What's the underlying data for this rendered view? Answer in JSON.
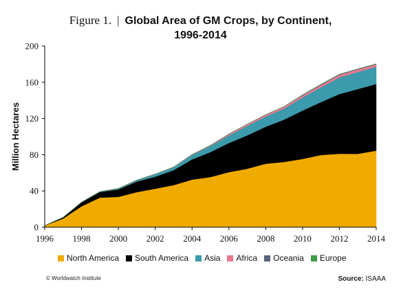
{
  "title_prefix": "Figure 1.",
  "title_sep": "|",
  "title_line1": "Global Area of GM Crops, by Continent,",
  "title_line2": "1996-2014",
  "credit": "© Worldwatch Institute",
  "source_label": "Source:",
  "source_value": "ISAAA",
  "chart_data": {
    "type": "area",
    "stacked": true,
    "title": "Global Area of GM Crops, by Continent, 1996-2014",
    "xlabel": "",
    "ylabel": "Million Hectares",
    "ylim": [
      0,
      200
    ],
    "yticks": [
      0,
      40,
      80,
      120,
      160,
      200
    ],
    "xticks": [
      1996,
      1998,
      2000,
      2002,
      2004,
      2006,
      2008,
      2010,
      2012,
      2014
    ],
    "legend_position": "bottom",
    "grid": false,
    "x": [
      1996,
      1997,
      1998,
      1999,
      2000,
      2001,
      2002,
      2003,
      2004,
      2005,
      2006,
      2007,
      2008,
      2009,
      2010,
      2011,
      2012,
      2013,
      2014
    ],
    "series": [
      {
        "name": "North America",
        "color": "#f0ab00",
        "values": [
          1.7,
          9.5,
          23,
          32.6,
          33.4,
          38.6,
          42.4,
          46.4,
          52.4,
          55.3,
          60.7,
          64.5,
          70,
          72,
          75.3,
          79.6,
          81,
          80.9,
          84.5
        ]
      },
      {
        "name": "South America",
        "color": "#000000",
        "values": [
          0.1,
          1.4,
          4.5,
          6.2,
          8.3,
          11.8,
          13.3,
          16.5,
          22.4,
          27.6,
          32.2,
          36.9,
          40.8,
          46.7,
          53.4,
          58.4,
          65.9,
          71.5,
          73.5
        ]
      },
      {
        "name": "Asia",
        "color": "#3b9aac",
        "values": [
          0,
          0,
          0.1,
          0.4,
          0.8,
          1.3,
          2.6,
          3.1,
          4.8,
          6.7,
          8.3,
          10.5,
          11.4,
          12.1,
          14.5,
          16.5,
          18.4,
          18.9,
          19.1
        ]
      },
      {
        "name": "Africa",
        "color": "#e8798e",
        "values": [
          0,
          0,
          0,
          0.1,
          0.2,
          0.2,
          0.3,
          0.4,
          0.5,
          0.5,
          1.4,
          1.8,
          1.8,
          2.2,
          2.3,
          2.5,
          2.8,
          2.9,
          2.7
        ]
      },
      {
        "name": "Oceania",
        "color": "#5a6378",
        "values": [
          0,
          0,
          0.1,
          0.1,
          0.2,
          0.2,
          0.1,
          0.1,
          0.2,
          0.3,
          0.2,
          0.1,
          0.2,
          0.2,
          0.6,
          0.7,
          0.7,
          0.5,
          0.5
        ]
      },
      {
        "name": "Europe",
        "color": "#3f9a45",
        "values": [
          0,
          0,
          0,
          0,
          0,
          0,
          0,
          0,
          0,
          0.1,
          0.2,
          0.1,
          0.1,
          0.1,
          0.1,
          0.1,
          0.1,
          0.1,
          0.1
        ]
      }
    ]
  }
}
